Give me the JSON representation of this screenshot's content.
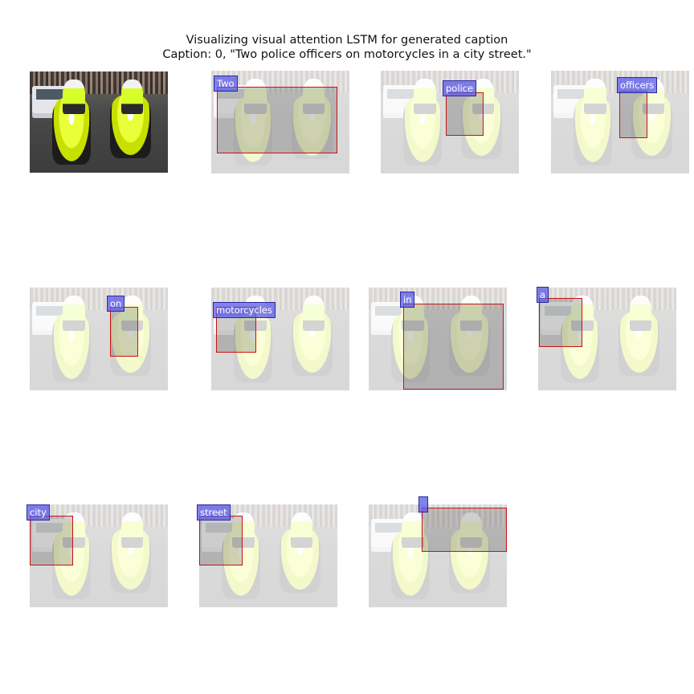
{
  "title": {
    "line1": "Visualizing visual attention LSTM for generated caption",
    "line2": "Caption: 0, \"Two police officers on motorcycles in a city street.\""
  },
  "words": [
    "Two",
    "police",
    "officers",
    "on",
    "motorcycles",
    "in",
    "a",
    "city",
    "street",
    ""
  ],
  "colors": {
    "label_fill": "#5a5aeb",
    "box_border": "#cc1111"
  }
}
